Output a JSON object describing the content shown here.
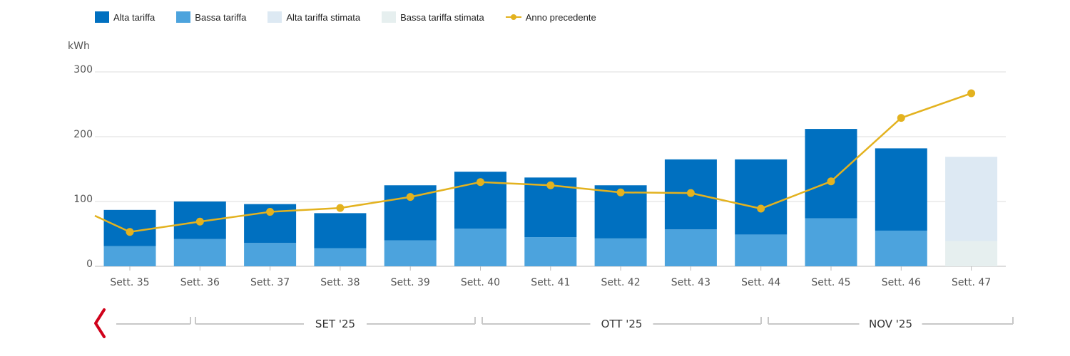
{
  "legend": [
    {
      "key": "alta",
      "label": "Alta tariffa",
      "color": "#0070c0",
      "kind": "box"
    },
    {
      "key": "bassa",
      "label": "Bassa tariffa",
      "color": "#4ca3dd",
      "kind": "box"
    },
    {
      "key": "alta_stimata",
      "label": "Alta tariffa stimata",
      "color": "#dde9f3",
      "kind": "box"
    },
    {
      "key": "bassa_stimata",
      "label": "Bassa tariffa stimata",
      "color": "#e6efef",
      "kind": "box"
    },
    {
      "key": "anno_prec",
      "label": "Anno precedente",
      "color": "#e3b21f",
      "kind": "line"
    }
  ],
  "chart_data": {
    "type": "bar",
    "stacked": true,
    "ylabel": "kWh",
    "ylim": [
      0,
      300
    ],
    "yticks": [
      0,
      100,
      200,
      300
    ],
    "grid": true,
    "legend_position": "top-left",
    "categories": [
      "Sett. 35",
      "Sett. 36",
      "Sett. 37",
      "Sett. 38",
      "Sett. 39",
      "Sett. 40",
      "Sett. 41",
      "Sett. 42",
      "Sett. 43",
      "Sett. 44",
      "Sett. 45",
      "Sett. 46",
      "Sett. 47"
    ],
    "series": [
      {
        "name": "Bassa tariffa",
        "color": "#4ca3dd",
        "values": [
          31,
          42,
          36,
          28,
          40,
          58,
          45,
          43,
          57,
          49,
          74,
          55,
          0
        ]
      },
      {
        "name": "Alta tariffa",
        "color": "#0070c0",
        "values": [
          56,
          58,
          60,
          54,
          85,
          88,
          92,
          82,
          108,
          116,
          138,
          127,
          0
        ]
      },
      {
        "name": "Bassa tariffa stimata",
        "color": "#e6efef",
        "values": [
          0,
          0,
          0,
          0,
          0,
          0,
          0,
          0,
          0,
          0,
          0,
          0,
          39
        ]
      },
      {
        "name": "Alta tariffa stimata",
        "color": "#dde9f3",
        "values": [
          0,
          0,
          0,
          0,
          0,
          0,
          0,
          0,
          0,
          0,
          0,
          0,
          130
        ]
      },
      {
        "name": "Anno precedente",
        "color": "#e3b21f",
        "type": "line",
        "values": [
          53,
          69,
          84,
          90,
          107,
          130,
          125,
          114,
          113,
          89,
          131,
          229,
          267
        ],
        "start_value": 78
      }
    ],
    "months": [
      "SET '25",
      "OTT '25",
      "NOV '25"
    ]
  },
  "nav": {
    "prev_icon": "chevron-left-icon",
    "color": "#d0021b"
  }
}
